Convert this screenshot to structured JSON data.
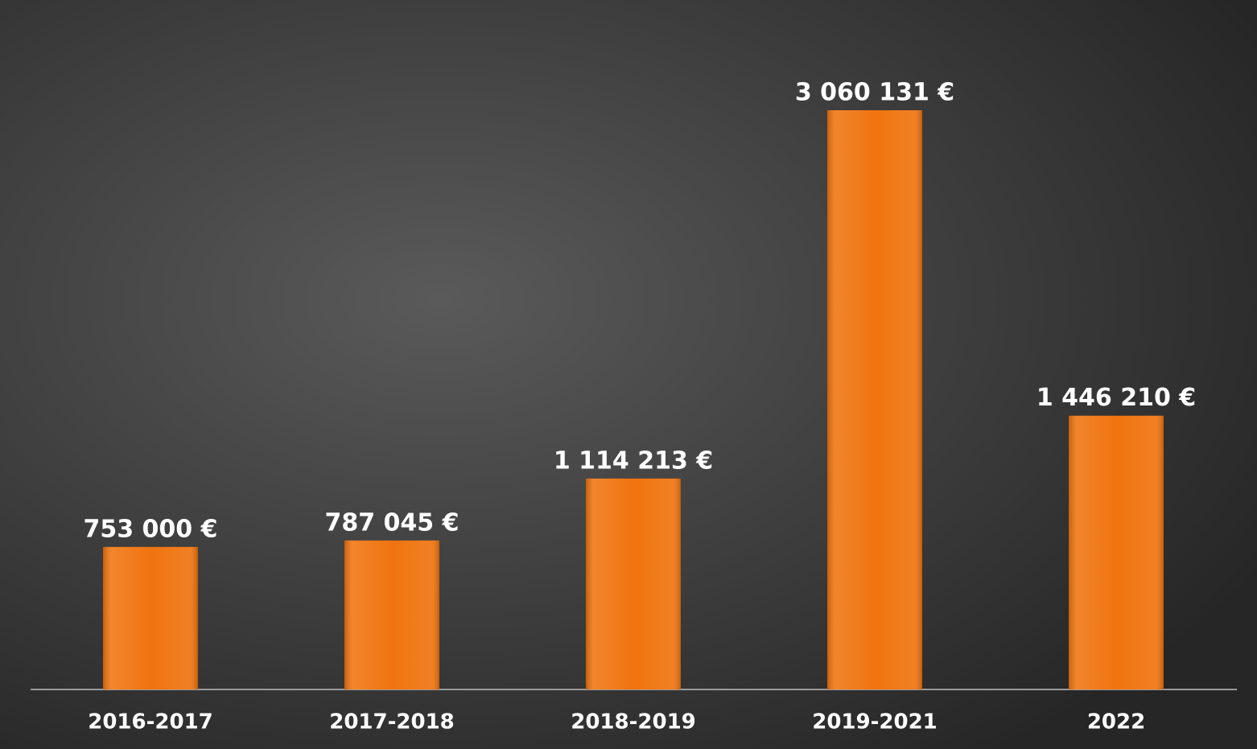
{
  "chart_data": {
    "type": "bar",
    "categories": [
      "2016-2017",
      "2017-2018",
      "2018-2019",
      "2019-2021",
      "2022"
    ],
    "values": [
      753000,
      787045,
      1114213,
      3060131,
      1446210
    ],
    "value_labels": [
      "753 000 €",
      "787 045 €",
      "1 114 213 €",
      "3 060 131 €",
      "1 446 210 €"
    ],
    "color": "#f07410"
  }
}
